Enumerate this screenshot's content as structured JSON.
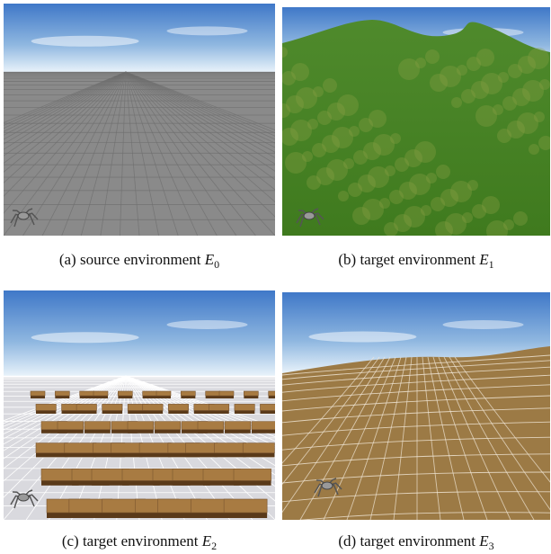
{
  "figure": {
    "panels": [
      {
        "label": "(a)",
        "text": "source environment",
        "symbol": "E",
        "subscript": "0"
      },
      {
        "label": "(b)",
        "text": "target environment",
        "symbol": "E",
        "subscript": "1"
      },
      {
        "label": "(c)",
        "text": "target environment",
        "symbol": "E",
        "subscript": "2"
      },
      {
        "label": "(d)",
        "text": "target environment",
        "symbol": "E",
        "subscript": "3"
      }
    ]
  }
}
